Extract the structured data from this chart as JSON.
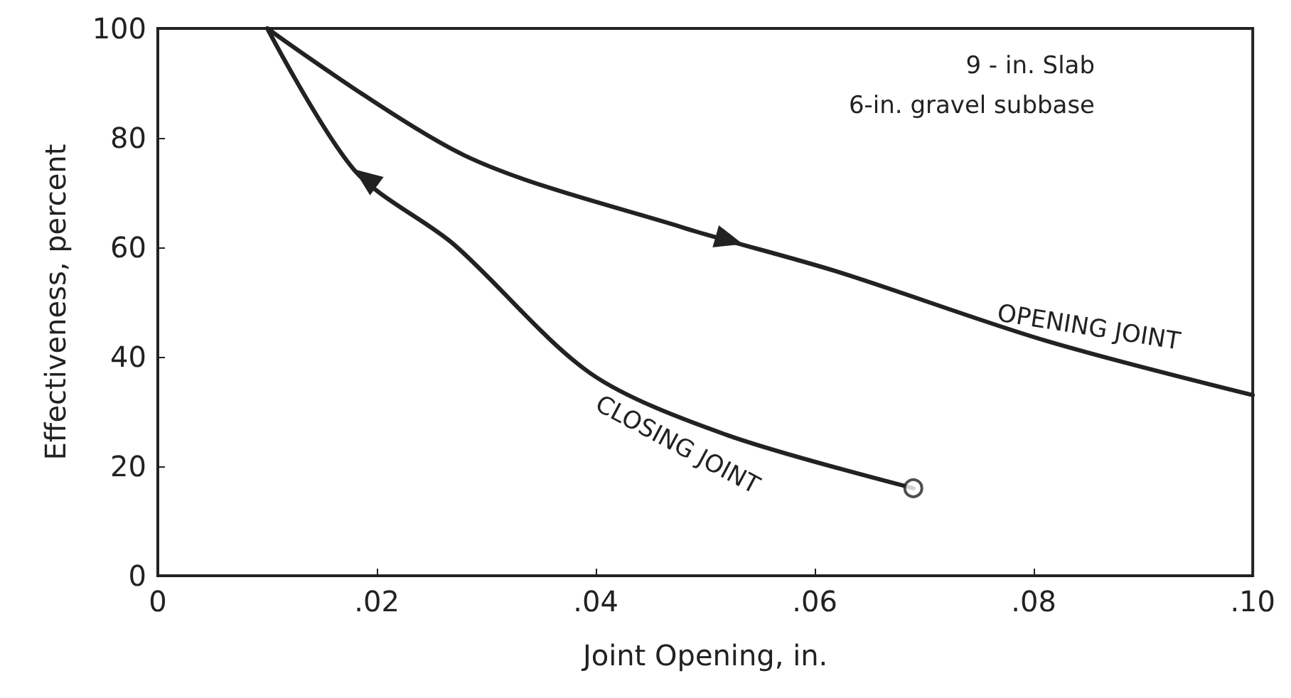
{
  "chart_data": {
    "type": "line",
    "xlabel": "Joint Opening, in.",
    "ylabel": "Effectiveness, percent",
    "annotations": [
      "9 - in. Slab",
      "6-in. gravel subbase"
    ],
    "xlim": [
      0,
      0.1
    ],
    "xticks": [
      {
        "value": 0,
        "label": "0"
      },
      {
        "value": 0.02,
        "label": ".02"
      },
      {
        "value": 0.04,
        "label": ".04"
      },
      {
        "value": 0.06,
        "label": ".06"
      },
      {
        "value": 0.08,
        "label": ".08"
      },
      {
        "value": 0.1,
        "label": ".10"
      }
    ],
    "ylim": [
      0,
      100
    ],
    "yticks": [
      0,
      20,
      40,
      60,
      80,
      100
    ],
    "grid": false,
    "legend": false,
    "series": [
      {
        "name": "OPENING JOINT",
        "color": "#222222",
        "x": [
          0.01,
          0.028,
          0.048,
          0.062,
          0.081,
          0.1
        ],
        "values": [
          100,
          76.8,
          63.6,
          55.6,
          43,
          33
        ]
      },
      {
        "name": "CLOSING JOINT",
        "color": "#222222",
        "x": [
          0.01,
          0.018,
          0.027,
          0.0395,
          0.052,
          0.069
        ],
        "values": [
          100,
          74,
          60.6,
          37,
          25.7,
          16
        ]
      },
      {
        "type": "scatter",
        "color": "#222222",
        "marker": "circle",
        "x": [
          0.069
        ],
        "values": [
          16
        ]
      }
    ]
  }
}
